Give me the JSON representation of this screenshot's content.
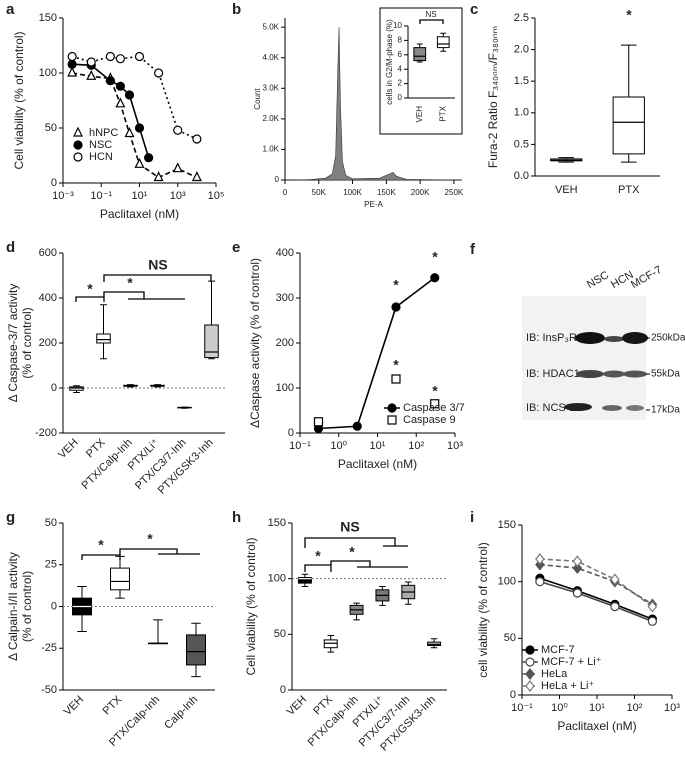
{
  "chart_data": [
    {
      "panel": "a",
      "type": "line",
      "xscale": "log",
      "xlim": [
        0.001,
        100000
      ],
      "xticks": [
        {
          "value": 0.001,
          "label": "10⁻³"
        },
        {
          "value": 0.1,
          "label": "10⁻¹"
        },
        {
          "value": 10,
          "label": "10¹"
        },
        {
          "value": 1000,
          "label": "10³"
        },
        {
          "value": 100000,
          "label": "10⁵"
        }
      ],
      "ylim": [
        0,
        150
      ],
      "yticks": [
        0,
        50,
        100,
        150
      ],
      "xlabel": "Paclitaxel (nM)",
      "ylabel": "Cell viability (% of control)",
      "legend": "lower left",
      "legend_lines": false,
      "series": [
        {
          "name": "hNPC",
          "color": "#000",
          "marker": "triangle-open",
          "dash": "dashed",
          "x": [
            0.003,
            0.03,
            0.3,
            1,
            3,
            10,
            100,
            1000,
            10000
          ],
          "values": [
            100,
            97,
            95,
            72,
            45,
            17,
            5,
            13,
            5
          ]
        },
        {
          "name": "NSC",
          "color": "#000",
          "marker": "circle-filled",
          "dash": "solid",
          "x": [
            0.003,
            0.03,
            0.3,
            1,
            3,
            10,
            30
          ],
          "values": [
            108,
            107,
            93,
            88,
            80,
            50,
            23
          ]
        },
        {
          "name": "HCN",
          "color": "#000",
          "marker": "circle-open",
          "dash": "dotted",
          "x": [
            0.003,
            0.03,
            0.3,
            1,
            10,
            100,
            1000,
            10000
          ],
          "values": [
            115,
            110,
            115,
            113,
            115,
            100,
            48,
            40
          ]
        }
      ]
    },
    {
      "panel": "b",
      "type": "area",
      "color": "#808080",
      "xlim": [
        0,
        262000
      ],
      "xticks": [
        0,
        {
          "value": 50000,
          "label": "50K"
        },
        {
          "value": 100000,
          "label": "100K"
        },
        {
          "value": 150000,
          "label": "150K"
        },
        {
          "value": 200000,
          "label": "200K"
        },
        {
          "value": 250000,
          "label": "250K"
        }
      ],
      "ylim": [
        0,
        5300
      ],
      "yticks": [
        0,
        {
          "value": 1000,
          "label": "1.0K"
        },
        {
          "value": 2000,
          "label": "2.0K"
        },
        {
          "value": 3000,
          "label": "3.0K"
        },
        {
          "value": 4000,
          "label": "4.0K"
        },
        {
          "value": 5000,
          "label": "5.0K"
        }
      ],
      "xlabel": "PE-A",
      "ylabel": "Count",
      "x": [
        0,
        20000,
        40000,
        60000,
        70000,
        75000,
        78000,
        80000,
        82000,
        85000,
        90000,
        100000,
        140000,
        155000,
        160000,
        165000,
        180000,
        262000
      ],
      "values": [
        0,
        0,
        20,
        60,
        200,
        800,
        3500,
        5000,
        2500,
        600,
        150,
        40,
        60,
        200,
        250,
        120,
        20,
        0
      ]
    },
    {
      "type": "box",
      "categories": [
        "VEH",
        "PTX"
      ],
      "colors": [
        "#888888",
        "#ffffff"
      ],
      "ylim": [
        0,
        10
      ],
      "yticks": [
        0,
        2,
        4,
        6,
        8,
        10
      ],
      "ylabel": "cells in G2/M-phase (%)",
      "annotations": [
        "NS"
      ],
      "boxes": [
        {
          "min": 5,
          "q1": 5.2,
          "median": 5.8,
          "q3": 7,
          "max": 7.5
        },
        {
          "min": 6.5,
          "q1": 7,
          "median": 7.5,
          "q3": 8.5,
          "max": 9
        }
      ]
    },
    {
      "panel": "c",
      "type": "box",
      "categories": [
        "VEH",
        "PTX"
      ],
      "colors": [
        "#ffffff",
        "#ffffff"
      ],
      "ylim": [
        0,
        2.5
      ],
      "yticks": [
        {
          "value": 0,
          "label": "0.0"
        },
        0.5,
        {
          "value": 1,
          "label": "1.0"
        },
        1.5,
        {
          "value": 2,
          "label": "2.0"
        },
        2.5
      ],
      "ylabel": "Fura-2 Ratio F₃₄₀ₙₘ/F₃₈₀ₙₘ",
      "annotations": [
        "*"
      ],
      "boxes": [
        {
          "min": 0.22,
          "q1": 0.24,
          "median": 0.25,
          "q3": 0.27,
          "max": 0.29
        },
        {
          "min": 0.22,
          "q1": 0.35,
          "median": 0.85,
          "q3": 1.25,
          "max": 2.07
        }
      ]
    },
    {
      "panel": "d",
      "type": "box",
      "categories": [
        "VEH",
        "PTX",
        "PTX/Calp-Inh",
        "PTX/Li⁺",
        "PTX/C3/7-Inh",
        "PTX/GSK3-Inh"
      ],
      "colors": [
        "#ffffff",
        "#ffffff",
        "#ffffff",
        "#ffffff",
        "#ffffff",
        "#cccccc"
      ],
      "ylim": [
        -200,
        600
      ],
      "yticks": [
        -200,
        0,
        200,
        400,
        600
      ],
      "ylabel": [
        "Δ Caspase-3/7 activity",
        "(% of control)"
      ],
      "hline": 0,
      "annotations": [
        "*",
        "*",
        "NS"
      ],
      "boxes": [
        {
          "min": -20,
          "q1": -10,
          "median": 0,
          "q3": 5,
          "max": 10
        },
        {
          "min": 130,
          "q1": 200,
          "median": 215,
          "q3": 240,
          "max": 370
        },
        {
          "min": 5,
          "q1": 8,
          "median": 10,
          "q3": 12,
          "max": 15
        },
        {
          "min": 5,
          "q1": 8,
          "median": 10,
          "q3": 12,
          "max": 15
        },
        {
          "min": -90,
          "q1": -88,
          "median": -87,
          "q3": -86,
          "max": -85
        },
        {
          "min": 130,
          "q1": 135,
          "median": 160,
          "q3": 280,
          "max": 475
        }
      ]
    },
    {
      "panel": "e",
      "type": "line",
      "xscale": "log",
      "xlim": [
        0.1,
        1000
      ],
      "xticks": [
        {
          "value": 0.1,
          "label": "10⁻¹"
        },
        {
          "value": 1,
          "label": "10⁰"
        },
        {
          "value": 10,
          "label": "10¹"
        },
        {
          "value": 100,
          "label": "10²"
        },
        {
          "value": 1000,
          "label": "10³"
        }
      ],
      "ylim": [
        0,
        400
      ],
      "yticks": [
        0,
        100,
        200,
        300,
        400
      ],
      "xlabel": "Paclitaxel (nM)",
      "ylabel": "ΔCaspase activity (% of control)",
      "legend": "lower right",
      "legend_lines": true,
      "annotations": [
        "*",
        "*",
        "*",
        "*"
      ],
      "series": [
        {
          "name": "Caspase 3/7",
          "color": "#000",
          "marker": "circle-filled",
          "dash": "solid",
          "x": [
            0.3,
            3,
            30,
            300
          ],
          "values": [
            10,
            15,
            280,
            345
          ]
        },
        {
          "name": "Caspase 9",
          "color": "#000",
          "marker": "square-open",
          "dash": "none",
          "x": [
            0.3,
            30,
            300
          ],
          "values": [
            25,
            120,
            65
          ]
        }
      ]
    },
    {
      "panel": "g",
      "type": "box",
      "categories": [
        "VEH",
        "PTX",
        "PTX/Calp-Inh",
        "Calp-Inh"
      ],
      "colors": [
        "#000000",
        "#ffffff",
        "#ffffff",
        "#555555"
      ],
      "ylim": [
        -50,
        50
      ],
      "yticks": [
        -50,
        -25,
        0,
        25,
        50
      ],
      "ylabel": [
        "Δ Calpain-I/II activity",
        "(% of control)"
      ],
      "hline": 0,
      "annotations": [
        "*",
        "*"
      ],
      "boxes": [
        {
          "min": -15,
          "q1": -5,
          "median": 0,
          "q3": 5,
          "max": 12
        },
        {
          "min": 5,
          "q1": 10,
          "median": 15,
          "q3": 23,
          "max": 30
        },
        {
          "min": -22,
          "q1": -22,
          "median": -22,
          "q3": -22,
          "max": -8
        },
        {
          "min": -42,
          "q1": -35,
          "median": -27,
          "q3": -17,
          "max": -10
        }
      ]
    },
    {
      "panel": "h",
      "type": "box",
      "categories": [
        "VEH",
        "PTX",
        "PTX/Calp-Inh",
        "PTX/Li⁺",
        "PTX/C3/7-Inh",
        "PTX/GSK3-Inh"
      ],
      "colors": [
        "#000000",
        "#ffffff",
        "#888888",
        "#777777",
        "#aaaaaa",
        "#cccccc"
      ],
      "ylim": [
        0,
        150
      ],
      "yticks": [
        0,
        50,
        100,
        150
      ],
      "ylabel": "Cell viability (% of control)",
      "hline": 100,
      "annotations": [
        "NS",
        "*",
        "*"
      ],
      "boxes": [
        {
          "min": 93,
          "q1": 96,
          "median": 100,
          "q3": 101,
          "max": 104
        },
        {
          "min": 34,
          "q1": 38,
          "median": 42,
          "q3": 45,
          "max": 49
        },
        {
          "min": 63,
          "q1": 68,
          "median": 72,
          "q3": 76,
          "max": 78
        },
        {
          "min": 76,
          "q1": 80,
          "median": 85,
          "q3": 90,
          "max": 93
        },
        {
          "min": 77,
          "q1": 82,
          "median": 88,
          "q3": 94,
          "max": 97
        },
        {
          "min": 38,
          "q1": 40,
          "median": 41,
          "q3": 43,
          "max": 46
        }
      ]
    },
    {
      "panel": "i",
      "type": "line",
      "xscale": "log",
      "xlim": [
        0.1,
        1000
      ],
      "xticks": [
        {
          "value": 0.1,
          "label": "10⁻¹"
        },
        {
          "value": 1,
          "label": "10⁰"
        },
        {
          "value": 10,
          "label": "10¹"
        },
        {
          "value": 100,
          "label": "10²"
        },
        {
          "value": 1000,
          "label": "10³"
        }
      ],
      "ylim": [
        0,
        150
      ],
      "yticks": [
        0,
        50,
        100,
        150
      ],
      "xlabel": "Paclitaxel (nM)",
      "ylabel": "cell viability (% of control)",
      "legend": "lower left",
      "legend_lines": true,
      "x": [
        0.3,
        3,
        30,
        300
      ],
      "series": [
        {
          "name": "MCF-7",
          "color": "#000",
          "marker": "circle-filled",
          "dash": "solid",
          "values": [
            103,
            92,
            80,
            67
          ]
        },
        {
          "name": "MCF-7 + Li⁺",
          "color": "#444",
          "marker": "circle-open",
          "dash": "solid",
          "values": [
            100,
            90,
            78,
            65
          ]
        },
        {
          "name": "HeLa",
          "color": "#555",
          "marker": "diamond-filled",
          "dash": "dashed",
          "values": [
            115,
            112,
            100,
            80
          ]
        },
        {
          "name": "HeLa + Li⁺",
          "color": "#777",
          "marker": "diamond-open",
          "dash": "dashed",
          "values": [
            120,
            118,
            102,
            78
          ]
        }
      ]
    }
  ],
  "blot": {
    "panel": "f",
    "lanes": [
      "NSC",
      "HCN",
      "MCF-7"
    ],
    "rows": [
      {
        "label": "IB: InsP₃R1",
        "size": "250kDa"
      },
      {
        "label": "IB: HDAC1",
        "size": "55kDa"
      },
      {
        "label": "IB: NCS-1",
        "size": "17kDa"
      }
    ]
  }
}
